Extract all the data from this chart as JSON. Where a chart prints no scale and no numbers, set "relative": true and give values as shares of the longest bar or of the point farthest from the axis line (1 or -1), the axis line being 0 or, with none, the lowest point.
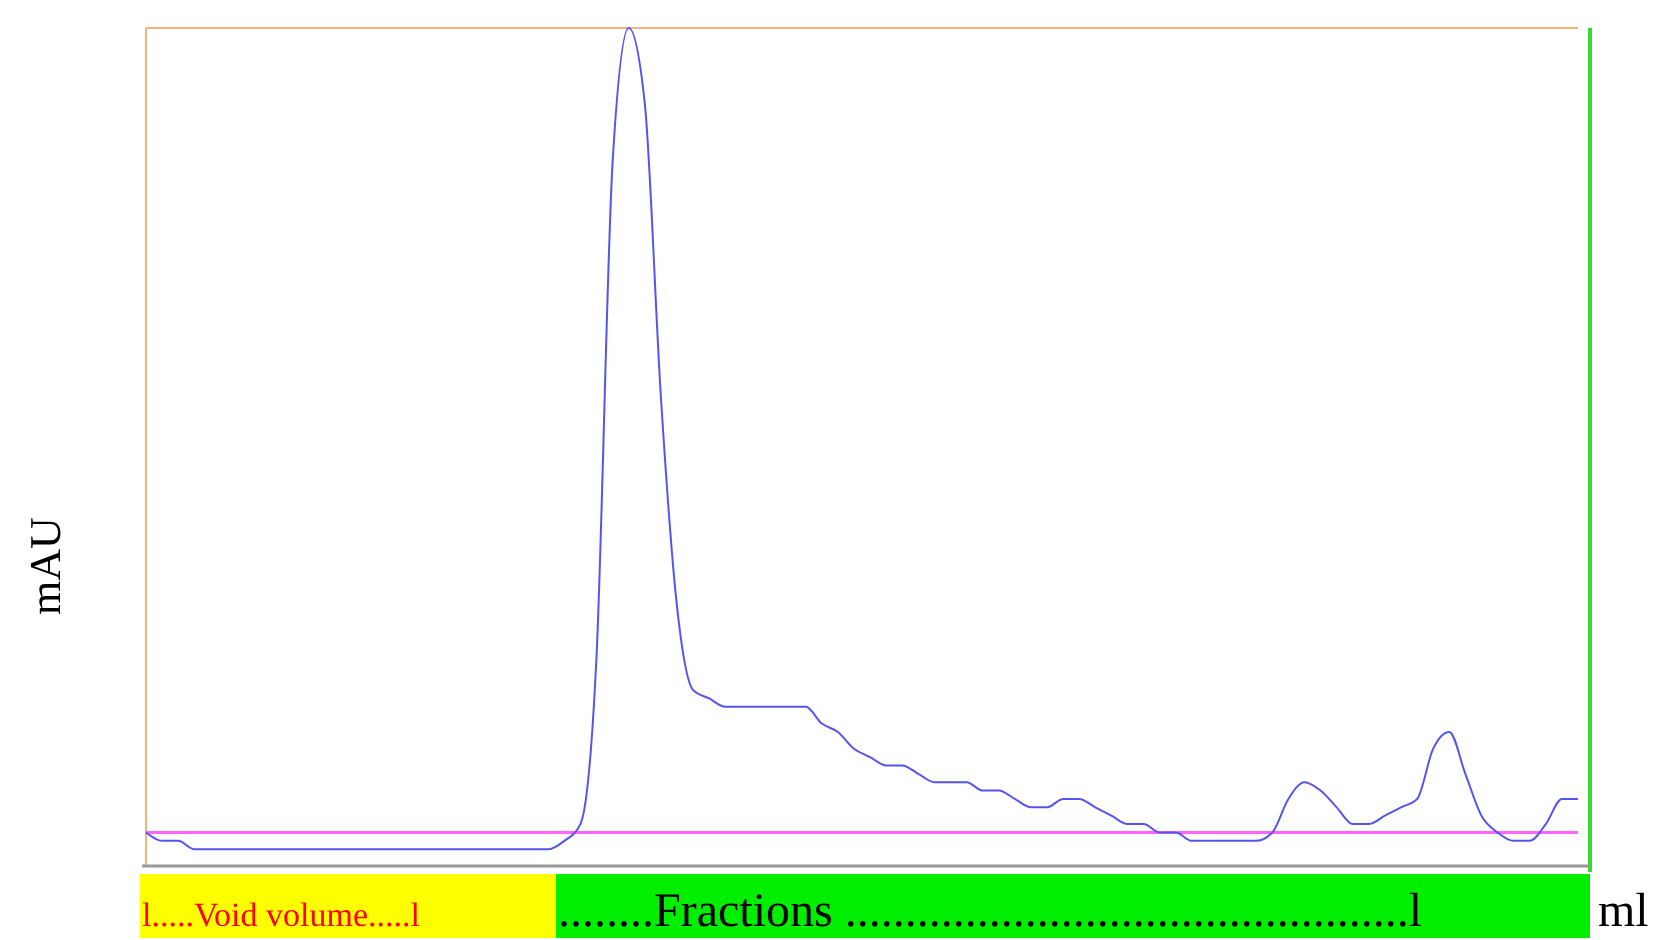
{
  "chart_data": {
    "type": "line",
    "relative": true,
    "ylabel": "mAU",
    "xlabel": "ml",
    "categories": [
      null,
      null,
      null,
      null,
      null,
      null,
      null,
      null,
      null,
      null,
      null,
      null,
      null,
      null,
      null,
      null,
      null,
      null,
      null,
      null,
      null,
      null,
      null,
      null,
      null,
      null,
      null,
      null,
      null,
      null,
      null,
      null,
      null,
      null,
      null,
      null,
      null,
      null,
      null,
      null,
      null,
      null,
      null,
      null,
      null,
      null,
      null,
      null,
      null,
      null,
      null,
      null,
      null,
      null,
      null,
      null,
      null,
      null,
      null,
      null,
      null,
      null,
      null,
      null,
      null,
      null,
      null,
      null,
      null,
      null,
      null,
      null,
      null,
      null,
      null,
      null,
      null,
      null,
      null,
      null,
      null,
      null,
      null,
      null,
      null,
      null,
      null,
      null,
      null,
      null
    ],
    "series": [
      {
        "color": "#5555ee",
        "values": [
          0.04,
          0.03,
          0.03,
          0.02,
          0.02,
          0.02,
          0.02,
          0.02,
          0.02,
          0.02,
          0.02,
          0.02,
          0.02,
          0.02,
          0.02,
          0.02,
          0.02,
          0.02,
          0.02,
          0.02,
          0.02,
          0.02,
          0.02,
          0.02,
          0.02,
          0.02,
          0.03,
          0.05,
          0.25,
          0.84,
          1,
          0.91,
          0.56,
          0.31,
          0.21,
          0.2,
          0.19,
          0.19,
          0.19,
          0.19,
          0.19,
          0.19,
          0.17,
          0.16,
          0.14,
          0.13,
          0.12,
          0.12,
          0.11,
          0.1,
          0.1,
          0.1,
          0.09,
          0.09,
          0.08,
          0.07,
          0.07,
          0.08,
          0.08,
          0.07,
          0.06,
          0.05,
          0.05,
          0.04,
          0.04,
          0.03,
          0.03,
          0.03,
          0.03,
          0.03,
          0.04,
          0.08,
          0.1,
          0.09,
          0.07,
          0.05,
          0.05,
          0.06,
          0.07,
          0.08,
          0.14,
          0.16,
          0.11,
          0.06,
          0.04,
          0.03,
          0.03,
          0.05,
          0.08,
          0.08
        ]
      }
    ],
    "ref_lines": [
      {
        "axis": "y",
        "value": 0.04,
        "color": "#ff66ff"
      }
    ],
    "annotations": [
      "l.....Void volume.....l",
      "........Fractions ...............................................l"
    ],
    "marker": "none",
    "line_style": "solid",
    "grid": false
  }
}
